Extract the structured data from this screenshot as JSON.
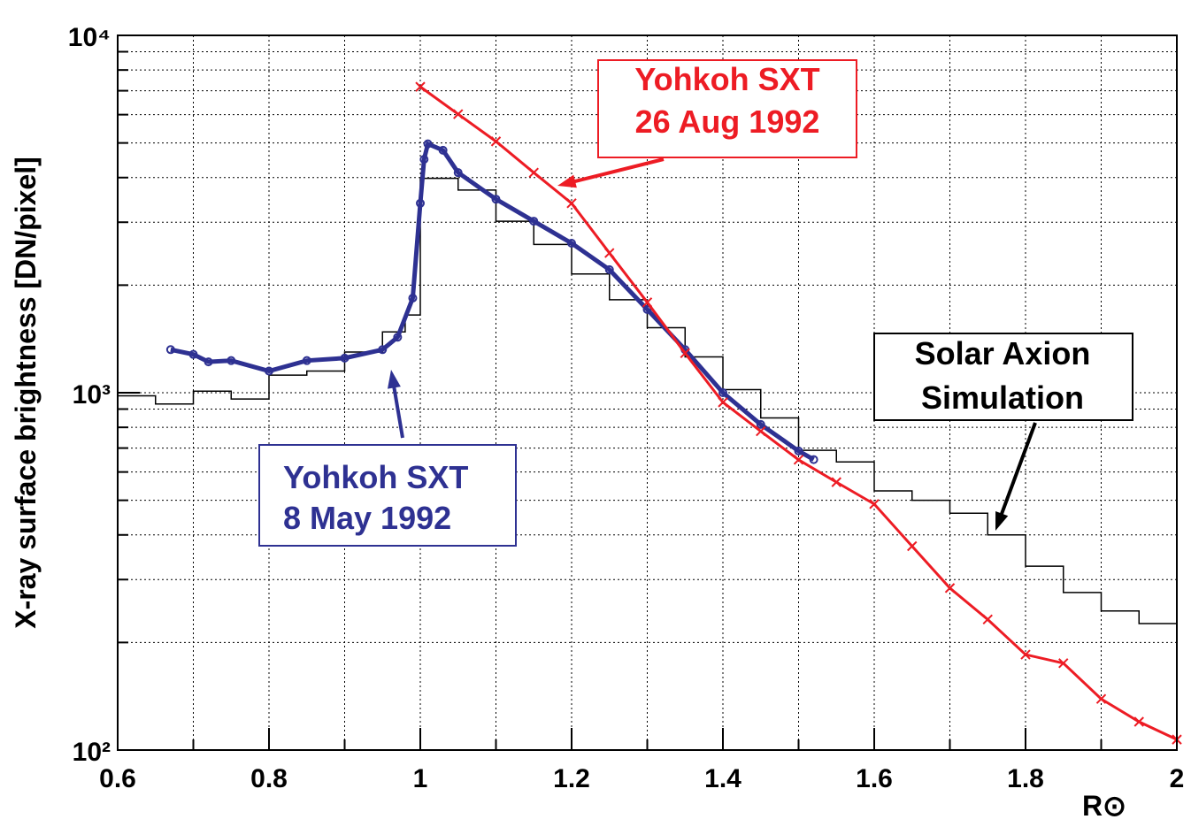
{
  "chart_data": {
    "type": "line",
    "xlabel": "R⊙",
    "ylabel": "X-ray  surface  brightness  [DN/pixel]",
    "log_y": true,
    "grid": true,
    "xlim": [
      0.6,
      2.0
    ],
    "ylim": [
      100,
      10000
    ],
    "xticks": [
      0.6,
      0.8,
      1,
      1.2,
      1.4,
      1.6,
      1.8,
      2
    ],
    "xminorticks": [
      0.7,
      0.9,
      1.1,
      1.3,
      1.5,
      1.7,
      1.9
    ],
    "yticks": [
      {
        "value": 100,
        "label": "10²"
      },
      {
        "value": 1000,
        "label": "10³"
      },
      {
        "value": 10000,
        "label": "10⁴"
      }
    ],
    "yminorticks": [
      200,
      300,
      400,
      500,
      600,
      700,
      800,
      900,
      2000,
      3000,
      4000,
      5000,
      6000,
      7000,
      8000,
      9000
    ],
    "series": [
      {
        "style": "step",
        "color": "#000000",
        "x": [
          0.6,
          0.65,
          0.7,
          0.75,
          0.8,
          0.85,
          0.9,
          0.95,
          0.98,
          1.0,
          1.05,
          1.1,
          1.15,
          1.2,
          1.25,
          1.3,
          1.35,
          1.4,
          1.45,
          1.5,
          1.55,
          1.6,
          1.65,
          1.7,
          1.75,
          1.8,
          1.85,
          1.9,
          1.95,
          2.0
        ],
        "values": [
          980,
          930,
          1010,
          960,
          1120,
          1150,
          1300,
          1480,
          1650,
          3980,
          3690,
          3020,
          2600,
          2150,
          1820,
          1520,
          1260,
          1020,
          850,
          690,
          640,
          531,
          500,
          460,
          400,
          327,
          276,
          245,
          226,
          195
        ]
      },
      {
        "style": "circle",
        "color": "#2e3192",
        "x": [
          0.67,
          0.7,
          0.72,
          0.75,
          0.8,
          0.85,
          0.9,
          0.95,
          0.97,
          0.99,
          1.0,
          1.005,
          1.01,
          1.03,
          1.05,
          1.1,
          1.15,
          1.2,
          1.25,
          1.3,
          1.35,
          1.4,
          1.45,
          1.5,
          1.52
        ],
        "values": [
          1320,
          1280,
          1220,
          1230,
          1150,
          1230,
          1250,
          1320,
          1430,
          1840,
          3390,
          4500,
          4970,
          4770,
          4130,
          3480,
          3020,
          2620,
          2210,
          1710,
          1320,
          1000,
          815,
          687,
          650
        ]
      },
      {
        "style": "cross",
        "color": "#ed1c24",
        "x": [
          1.0,
          1.05,
          1.1,
          1.15,
          1.2,
          1.25,
          1.3,
          1.35,
          1.4,
          1.45,
          1.5,
          1.55,
          1.6,
          1.65,
          1.7,
          1.75,
          1.8,
          1.85,
          1.9,
          1.95,
          2.0
        ],
        "values": [
          7180,
          6020,
          5050,
          4130,
          3390,
          2460,
          1790,
          1290,
          940,
          780,
          649,
          562,
          488,
          372,
          284,
          232,
          185,
          175,
          139,
          120,
          107
        ]
      }
    ],
    "annotations": [
      {
        "lines": [
          "Yohkoh SXT",
          "26  Aug  1992"
        ],
        "color": "#ed1c24"
      },
      {
        "lines": [
          "Yohkoh SXT",
          "8  May  1992"
        ],
        "color": "#2e3192"
      },
      {
        "lines": [
          "Solar  Axion",
          "Simulation"
        ],
        "color": "#000000"
      }
    ]
  }
}
